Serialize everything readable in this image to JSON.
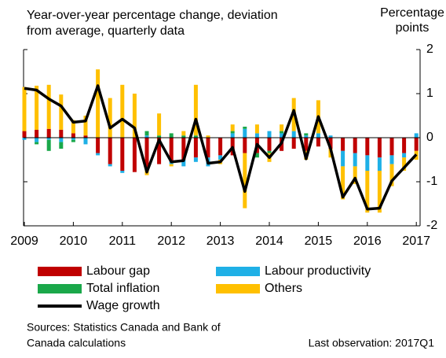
{
  "chart_data": {
    "type": "stacked_bar_line",
    "title": [
      "Year-over-year percentage change, deviation",
      "from average, quarterly data"
    ],
    "y_axis_label": [
      "Percentage",
      "points"
    ],
    "categories": [
      "2009",
      null,
      null,
      null,
      "2010",
      null,
      null,
      null,
      "2011",
      null,
      null,
      null,
      "2012",
      null,
      null,
      null,
      "2013",
      null,
      null,
      null,
      "2014",
      null,
      null,
      null,
      "2015",
      null,
      null,
      null,
      "2016",
      null,
      null,
      null,
      "2017"
    ],
    "ylim": [
      -2,
      2
    ],
    "yticks": [
      -2,
      -1,
      0,
      1,
      2
    ],
    "series": [
      {
        "name": "Labour gap",
        "color": "#c00000",
        "kind": "bar",
        "values": [
          0.15,
          0.18,
          0.2,
          0.18,
          0.1,
          0.05,
          -0.35,
          -0.6,
          -0.75,
          -0.78,
          -0.7,
          -0.6,
          -0.55,
          -0.5,
          -0.45,
          -0.45,
          -0.4,
          -0.4,
          -0.35,
          -0.35,
          -0.3,
          -0.3,
          -0.25,
          -0.3,
          -0.2,
          -0.25,
          -0.3,
          -0.35,
          -0.4,
          -0.45,
          -0.4,
          -0.35,
          -0.3
        ]
      },
      {
        "name": "Labour productivity",
        "color": "#1fb0e6",
        "kind": "bar",
        "values": [
          -0.05,
          -0.1,
          -0.05,
          -0.1,
          -0.05,
          -0.15,
          -0.05,
          -0.05,
          -0.05,
          0,
          0.05,
          0,
          -0.05,
          -0.15,
          -0.1,
          -0.2,
          -0.1,
          0.1,
          0.2,
          0.1,
          0.15,
          0.1,
          0.15,
          0.05,
          0.1,
          0.05,
          -0.35,
          -0.3,
          -0.35,
          -0.3,
          -0.2,
          -0.1,
          0.1
        ]
      },
      {
        "name": "Total inflation",
        "color": "#1aa84a",
        "kind": "bar",
        "values": [
          0,
          -0.05,
          -0.25,
          -0.15,
          -0.05,
          0,
          0,
          0,
          0,
          0,
          0.1,
          0.05,
          0.1,
          0.05,
          0.05,
          0,
          0,
          0.05,
          0.05,
          -0.1,
          -0.05,
          0.05,
          0,
          0.05,
          0,
          0,
          0,
          0,
          0,
          0,
          0,
          0,
          0
        ]
      },
      {
        "name": "Others",
        "color": "#ffc000",
        "kind": "bar",
        "values": [
          1.0,
          1.0,
          1.0,
          0.8,
          0.3,
          0.45,
          1.55,
          0.9,
          1.2,
          1.0,
          -0.15,
          0.5,
          -0.05,
          0.1,
          1.15,
          0.05,
          -0.1,
          0.15,
          -1.25,
          0.2,
          -0.2,
          0.15,
          0.75,
          -0.2,
          0.75,
          -0.2,
          -0.75,
          -0.4,
          -0.95,
          -0.95,
          -0.5,
          -0.3,
          -0.2
        ]
      },
      {
        "name": "Wage growth",
        "color": "#000000",
        "kind": "line",
        "values": [
          1.12,
          1.08,
          0.88,
          0.72,
          0.35,
          0.38,
          1.18,
          0.22,
          0.42,
          0.22,
          -0.78,
          -0.05,
          -0.55,
          -0.52,
          0.42,
          -0.58,
          -0.55,
          -0.22,
          -1.22,
          -0.15,
          -0.45,
          -0.12,
          0.62,
          -0.48,
          0.48,
          -0.25,
          -1.35,
          -0.92,
          -1.62,
          -1.6,
          -0.98,
          -0.68,
          -0.38
        ]
      }
    ],
    "source": [
      "Sources: Statistics Canada and Bank of",
      "Canada calculations"
    ],
    "note": "Last observation: 2017Q1"
  }
}
